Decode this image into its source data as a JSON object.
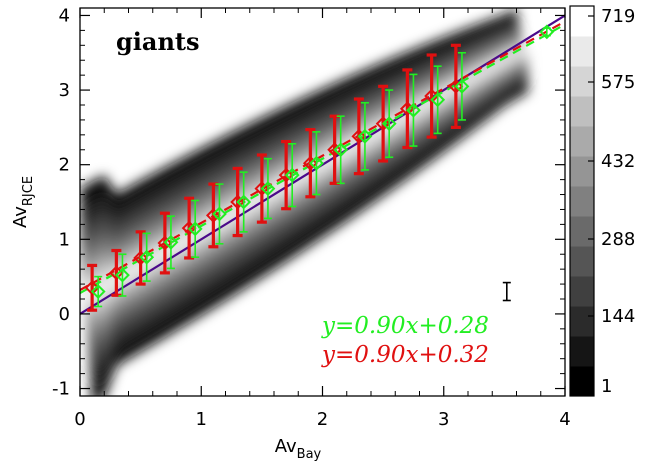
{
  "chart_data": {
    "type": "scatter",
    "panel_label": "giants",
    "xlabel": {
      "main": "Av",
      "sub": "Bay"
    },
    "ylabel": {
      "main": "Av",
      "sub": "RJCE"
    },
    "xlim": [
      0,
      4
    ],
    "ylim": [
      -1.1,
      4.1
    ],
    "xticks": [
      "0",
      "1",
      "2",
      "3",
      "4"
    ],
    "yticks": [
      "-1",
      "0",
      "1",
      "2",
      "3",
      "4"
    ],
    "density": {
      "colormap": "grayscale",
      "colorbar_ticks": [
        "719",
        "575",
        "432",
        "288",
        "144",
        "1"
      ],
      "levels": 13
    },
    "one_to_one_line": {
      "color": "#4b0a8a",
      "x": [
        0,
        4
      ],
      "y": [
        0,
        4
      ]
    },
    "series": [
      {
        "color": "#e01010",
        "fit_label": "y=0.90x+0.32",
        "fit": {
          "slope": 0.9,
          "intercept": 0.32
        },
        "points": [
          {
            "x": 0.1,
            "y": 0.35,
            "err": 0.3
          },
          {
            "x": 0.3,
            "y": 0.55,
            "err": 0.3
          },
          {
            "x": 0.5,
            "y": 0.75,
            "err": 0.35
          },
          {
            "x": 0.7,
            "y": 0.95,
            "err": 0.4
          },
          {
            "x": 0.9,
            "y": 1.15,
            "err": 0.4
          },
          {
            "x": 1.1,
            "y": 1.32,
            "err": 0.42
          },
          {
            "x": 1.3,
            "y": 1.5,
            "err": 0.45
          },
          {
            "x": 1.5,
            "y": 1.68,
            "err": 0.45
          },
          {
            "x": 1.7,
            "y": 1.86,
            "err": 0.45
          },
          {
            "x": 1.9,
            "y": 2.02,
            "err": 0.45
          },
          {
            "x": 2.1,
            "y": 2.2,
            "err": 0.45
          },
          {
            "x": 2.3,
            "y": 2.38,
            "err": 0.5
          },
          {
            "x": 2.5,
            "y": 2.55,
            "err": 0.5
          },
          {
            "x": 2.7,
            "y": 2.75,
            "err": 0.52
          },
          {
            "x": 2.9,
            "y": 2.92,
            "err": 0.55
          },
          {
            "x": 3.1,
            "y": 3.05,
            "err": 0.55
          }
        ]
      },
      {
        "color": "#22ee22",
        "fit_label": "y=0.90x+0.28",
        "fit": {
          "slope": 0.9,
          "intercept": 0.28
        },
        "points": [
          {
            "x": 0.15,
            "y": 0.3,
            "err": 0.2
          },
          {
            "x": 0.35,
            "y": 0.52,
            "err": 0.28
          },
          {
            "x": 0.55,
            "y": 0.76,
            "err": 0.32
          },
          {
            "x": 0.75,
            "y": 0.96,
            "err": 0.35
          },
          {
            "x": 0.95,
            "y": 1.14,
            "err": 0.38
          },
          {
            "x": 1.15,
            "y": 1.34,
            "err": 0.4
          },
          {
            "x": 1.35,
            "y": 1.5,
            "err": 0.4
          },
          {
            "x": 1.55,
            "y": 1.68,
            "err": 0.4
          },
          {
            "x": 1.75,
            "y": 1.86,
            "err": 0.42
          },
          {
            "x": 1.95,
            "y": 2.02,
            "err": 0.42
          },
          {
            "x": 2.15,
            "y": 2.2,
            "err": 0.45
          },
          {
            "x": 2.35,
            "y": 2.38,
            "err": 0.45
          },
          {
            "x": 2.55,
            "y": 2.55,
            "err": 0.45
          },
          {
            "x": 2.75,
            "y": 2.73,
            "err": 0.48
          },
          {
            "x": 2.95,
            "y": 2.87,
            "err": 0.45
          },
          {
            "x": 3.15,
            "y": 3.05,
            "err": 0.45
          },
          {
            "x": 3.85,
            "y": 3.78,
            "err": 0.05
          }
        ]
      }
    ],
    "typical_error_bar": {
      "x": 3.52,
      "y": 0.3,
      "err": 0.12
    },
    "grid": false,
    "legend_placement": "bottom-right"
  }
}
